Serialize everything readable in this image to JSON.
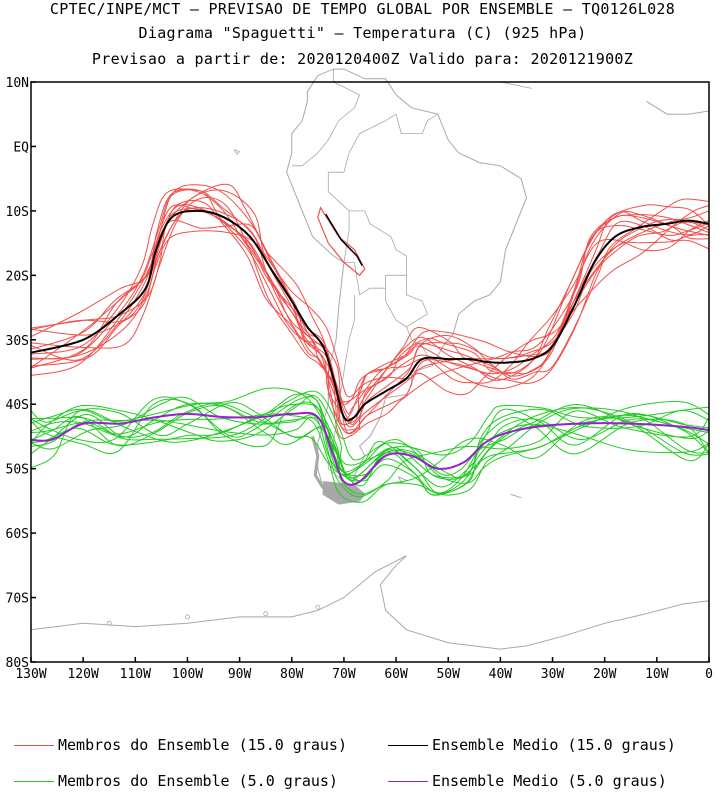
{
  "header": {
    "line1": "CPTEC/INPE/MCT — PREVISAO DE TEMPO GLOBAL POR ENSEMBLE — TQ0126L028",
    "line2": "Diagrama \"Spaguetti\" — Temperatura (C) (925 hPa)",
    "line3": "Previsao a partir de: 2020120400Z  Valido para: 2020121900Z"
  },
  "colors": {
    "members15": "#f0504c",
    "mean15": "#000000",
    "members5": "#22cc22",
    "mean5": "#9a1fd0",
    "coast": "#a8a8a8"
  },
  "chart_data": {
    "type": "line",
    "title": "Diagrama \"Spaguetti\" — Temperatura (C) (925 hPa)",
    "x_ticks": [
      "130W",
      "120W",
      "110W",
      "100W",
      "90W",
      "80W",
      "70W",
      "60W",
      "50W",
      "40W",
      "30W",
      "20W",
      "10W",
      "0"
    ],
    "y_ticks": [
      "10N",
      "EQ",
      "10S",
      "20S",
      "30S",
      "40S",
      "50S",
      "60S",
      "70S",
      "80S"
    ],
    "xlim": [
      -130,
      0
    ],
    "ylim": [
      -80,
      10
    ],
    "grid": false,
    "series": [
      {
        "name": "Ensemble Medio (15.0 graus)",
        "x": [
          -130,
          -120,
          -113,
          -108,
          -106,
          -103,
          -98,
          -93,
          -88,
          -84,
          -80,
          -77,
          -74,
          -72,
          -70,
          -68,
          -66,
          -62,
          -58,
          -55,
          -50,
          -46,
          -42,
          -38,
          -34,
          -30,
          -26,
          -22,
          -18,
          -13,
          -8,
          -4,
          0
        ],
        "y": [
          -32,
          -30,
          -26,
          -22,
          -16,
          -11,
          -10,
          -11,
          -14,
          -19,
          -24,
          -28,
          -31,
          -36,
          -42,
          -42,
          -40,
          -38,
          -36,
          -33,
          -33,
          -33,
          -33.5,
          -33.5,
          -33,
          -31,
          -25,
          -18,
          -14,
          -12.5,
          -12,
          -11.5,
          -12
        ]
      },
      {
        "name": "Ensemble Medio (5.0 graus)",
        "x": [
          -130,
          -126,
          -120,
          -113,
          -106,
          -100,
          -93,
          -86,
          -80,
          -75,
          -72,
          -70,
          -67,
          -62,
          -57,
          -52,
          -47,
          -43,
          -39,
          -33,
          -25,
          -15,
          -5,
          0
        ],
        "y": [
          -45.5,
          -45.5,
          -43,
          -43,
          -42,
          -41.5,
          -42,
          -42,
          -41.5,
          -42,
          -48,
          -52,
          -52,
          -48,
          -48,
          -50,
          -49,
          -46,
          -44.5,
          -43.5,
          -43,
          -43,
          -43.5,
          -44
        ]
      }
    ],
    "legend": [
      {
        "label": "Membros do Ensemble (15.0 graus)",
        "color": "#f0504c"
      },
      {
        "label": "Ensemble Medio (15.0 graus)",
        "color": "#000000"
      },
      {
        "label": "Membros do Ensemble (5.0 graus)",
        "color": "#22cc22"
      },
      {
        "label": "Ensemble Medio (5.0 graus)",
        "color": "#9a1fd0"
      }
    ],
    "legend_placement": "bottom"
  }
}
